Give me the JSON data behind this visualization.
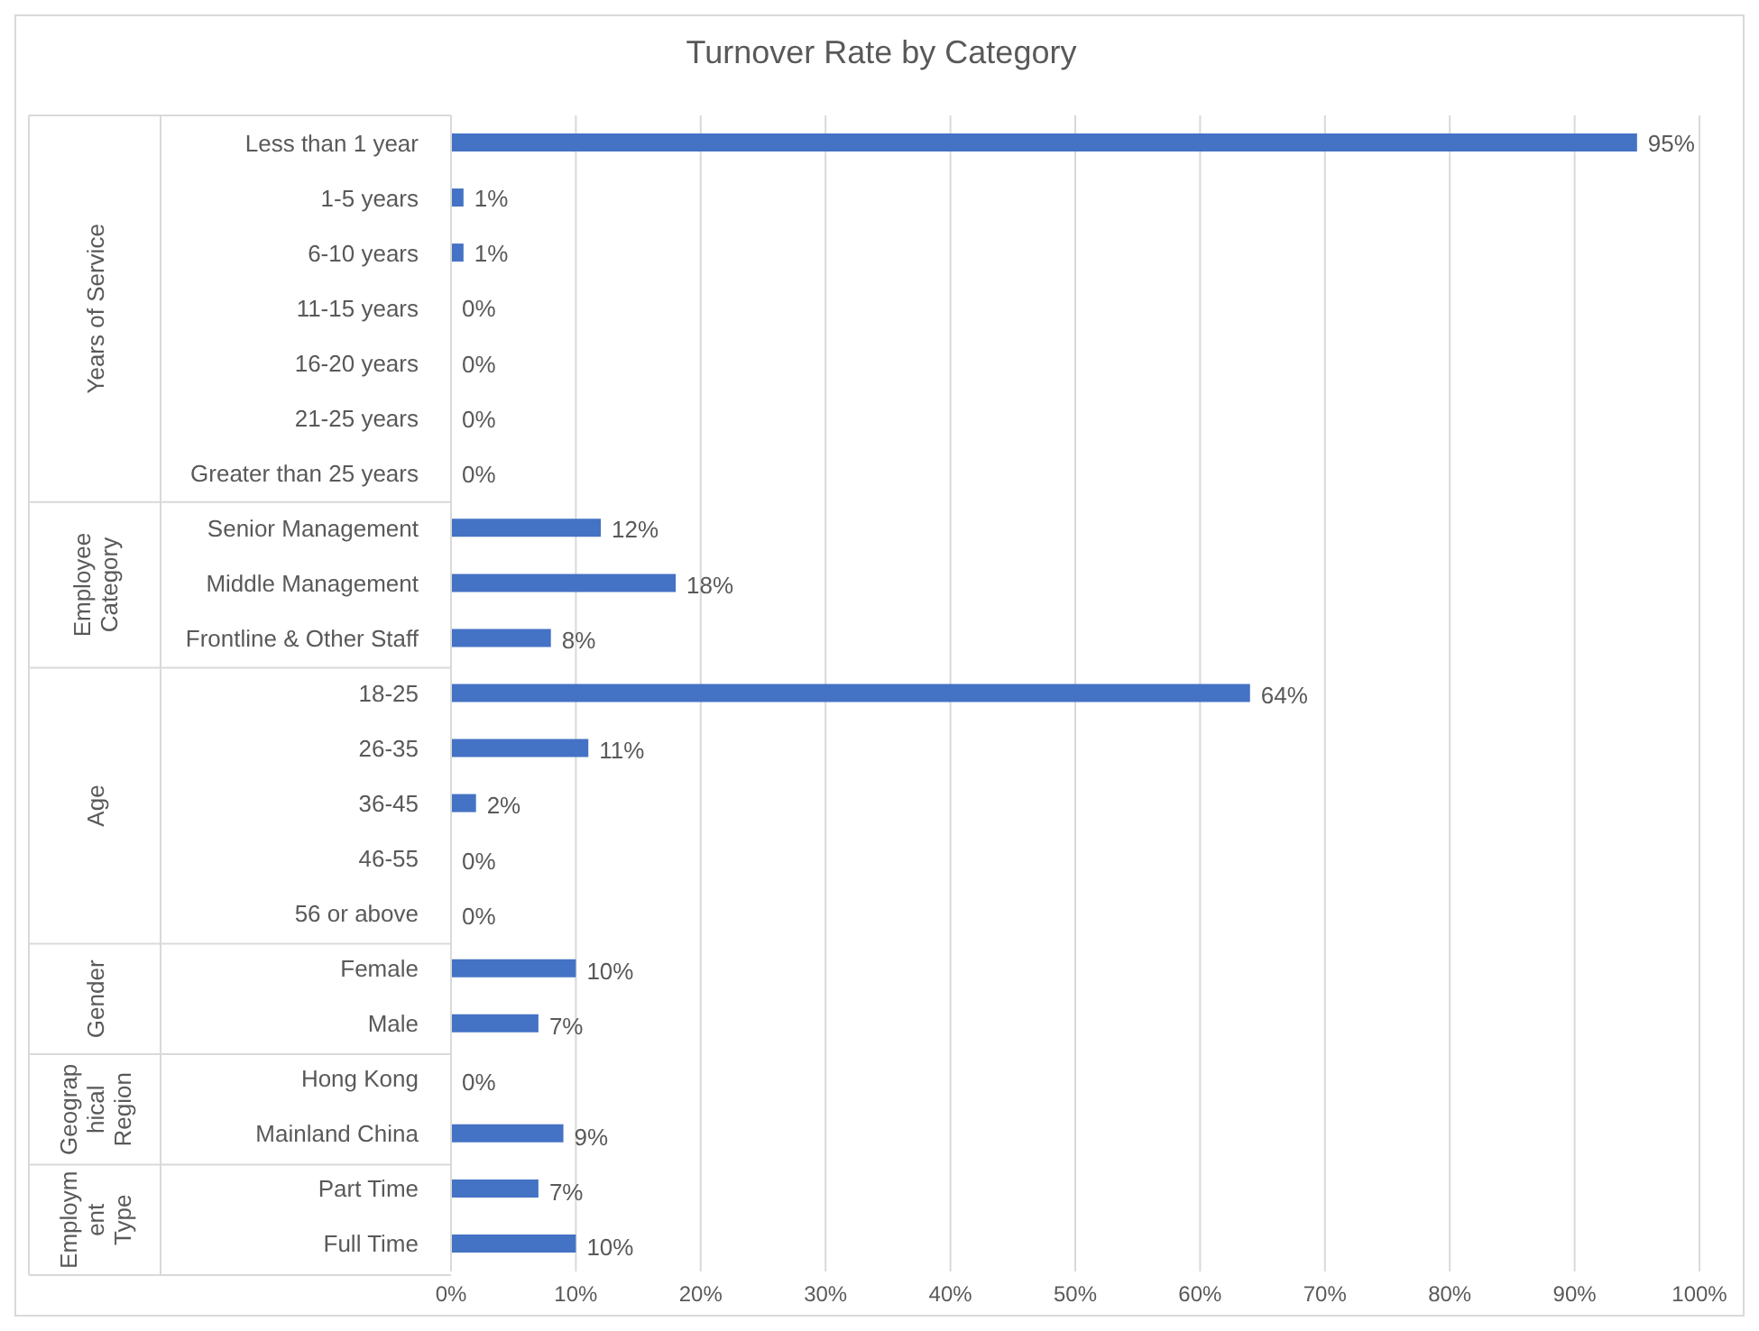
{
  "chart_data": {
    "type": "bar",
    "orientation": "horizontal",
    "title": "Turnover Rate by Category",
    "categories": [
      "Less than 1 year",
      "1-5 years",
      "6-10 years",
      "11-15 years",
      "16-20 years",
      "21-25 years",
      "Greater than 25 years",
      "Senior Management",
      "Middle Management",
      "Frontline & Other Staff",
      "18-25",
      "26-35",
      "36-45",
      "46-55",
      "56 or above",
      "Female",
      "Male",
      "Hong Kong",
      "Mainland China",
      "Part Time",
      "Full Time"
    ],
    "values": [
      95,
      1,
      1,
      0,
      0,
      0,
      0,
      12,
      18,
      8,
      64,
      11,
      2,
      0,
      0,
      10,
      7,
      0,
      9,
      7,
      10
    ],
    "value_labels": [
      "95%",
      "1%",
      "1%",
      "0%",
      "0%",
      "0%",
      "0%",
      "12%",
      "18%",
      "8%",
      "64%",
      "11%",
      "2%",
      "0%",
      "0%",
      "10%",
      "7%",
      "0%",
      "9%",
      "7%",
      "10%"
    ],
    "color": "#4472c4",
    "xlim": [
      0,
      100
    ],
    "xticks": [
      {
        "value": 0,
        "label": "0%"
      },
      {
        "value": 10,
        "label": "10%"
      },
      {
        "value": 20,
        "label": "20%"
      },
      {
        "value": 30,
        "label": "30%"
      },
      {
        "value": 40,
        "label": "40%"
      },
      {
        "value": 50,
        "label": "50%"
      },
      {
        "value": 60,
        "label": "60%"
      },
      {
        "value": 70,
        "label": "70%"
      },
      {
        "value": 80,
        "label": "80%"
      },
      {
        "value": 90,
        "label": "90%"
      },
      {
        "value": 100,
        "label": "100%"
      }
    ],
    "grid": "x",
    "annotations": [
      "Years of Service",
      "Employee Category",
      "Age",
      "Gender",
      "Geographical Region",
      "Employment Type"
    ]
  }
}
